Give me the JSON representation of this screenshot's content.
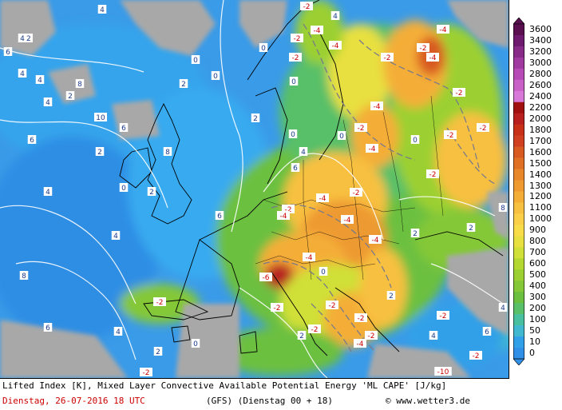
{
  "footer": {
    "line1": "Lifted Index [K], Mixed Layer Convective Available Potential Energy 'ML CAPE' [J/kg]",
    "date": "Dienstag, 26-07-2016  18 UTC",
    "model": "(GFS)  (Dienstag 00 + 18)",
    "copyright": "© www.wetter3.de"
  },
  "colorbar": {
    "levels": [
      "3600",
      "3400",
      "3200",
      "3000",
      "2800",
      "2600",
      "2400",
      "2200",
      "2000",
      "1800",
      "1700",
      "1600",
      "1500",
      "1400",
      "1300",
      "1200",
      "1100",
      "1000",
      "900",
      "800",
      "700",
      "600",
      "500",
      "400",
      "300",
      "200",
      "100",
      "50",
      "10",
      "0"
    ],
    "colors": [
      "#5a1050",
      "#6e1a6e",
      "#882a88",
      "#a03aa0",
      "#b84ab8",
      "#c860c8",
      "#d878d8",
      "#a01010",
      "#b82020",
      "#c83018",
      "#d04020",
      "#d85a20",
      "#e07024",
      "#e8862a",
      "#ee9a30",
      "#f4ae38",
      "#f8c040",
      "#fbd048",
      "#f8dc48",
      "#e8e040",
      "#d0e038",
      "#b4d830",
      "#9cd030",
      "#84c838",
      "#6cc040",
      "#58c068",
      "#48c0a0",
      "#40b8d0",
      "#30a0e8",
      "#3090e8"
    ]
  },
  "map": {
    "sea_color": "#3a9be8",
    "land_gray": "#a8a8a8",
    "li_labels": [
      {
        "v": "4",
        "c": "w"
      },
      {
        "v": "12",
        "c": "w"
      },
      {
        "v": "6",
        "c": "w"
      },
      {
        "v": "4",
        "c": "w"
      },
      {
        "v": "2",
        "c": "w"
      },
      {
        "v": "4",
        "c": "w"
      },
      {
        "v": "6",
        "c": "w"
      },
      {
        "v": "10",
        "c": "w"
      },
      {
        "v": "8",
        "c": "w"
      },
      {
        "v": "6",
        "c": "w"
      },
      {
        "v": "4",
        "c": "w"
      },
      {
        "v": "2",
        "c": "w"
      },
      {
        "v": "0",
        "c": "w"
      },
      {
        "v": "2",
        "c": "w"
      },
      {
        "v": "6",
        "c": "w"
      },
      {
        "v": "4",
        "c": "w"
      },
      {
        "v": "8",
        "c": "w"
      },
      {
        "v": "6",
        "c": "w"
      },
      {
        "v": "4",
        "c": "w"
      },
      {
        "v": "2",
        "c": "w"
      },
      {
        "v": "0",
        "c": "w"
      },
      {
        "v": "0",
        "c": "w"
      },
      {
        "v": "0",
        "c": "w"
      },
      {
        "v": "2",
        "c": "w"
      },
      {
        "v": "4",
        "c": "w"
      },
      {
        "v": "6",
        "c": "w"
      },
      {
        "v": "8",
        "c": "w"
      },
      {
        "v": "4",
        "c": "w"
      },
      {
        "v": "2",
        "c": "w"
      },
      {
        "v": "-2",
        "c": "r"
      },
      {
        "v": "-4",
        "c": "r"
      },
      {
        "v": "-2",
        "c": "r"
      },
      {
        "v": "-4",
        "c": "r"
      },
      {
        "v": "-2",
        "c": "r"
      },
      {
        "v": "-4",
        "c": "r"
      },
      {
        "v": "-2",
        "c": "r"
      },
      {
        "v": "-4",
        "c": "r"
      },
      {
        "v": "-2",
        "c": "r"
      },
      {
        "v": "-4",
        "c": "r"
      },
      {
        "v": "-4",
        "c": "r"
      },
      {
        "v": "-2",
        "c": "r"
      },
      {
        "v": "-4",
        "c": "r"
      },
      {
        "v": "-2",
        "c": "r"
      },
      {
        "v": "-4",
        "c": "r"
      },
      {
        "v": "-2",
        "c": "r"
      },
      {
        "v": "-6",
        "c": "r"
      },
      {
        "v": "-2",
        "c": "r"
      },
      {
        "v": "-4",
        "c": "r"
      },
      {
        "v": "-2",
        "c": "r"
      },
      {
        "v": "-2",
        "c": "r"
      },
      {
        "v": "-4",
        "c": "r"
      },
      {
        "v": "-2",
        "c": "r"
      },
      {
        "v": "-4",
        "c": "r"
      },
      {
        "v": "-2",
        "c": "r"
      },
      {
        "v": "-2",
        "c": "r"
      },
      {
        "v": "-2",
        "c": "r"
      },
      {
        "v": "-2",
        "c": "r"
      },
      {
        "v": "-10",
        "c": "r"
      },
      {
        "v": "-2",
        "c": "r"
      },
      {
        "v": "2",
        "c": "w"
      },
      {
        "v": "0",
        "c": "w"
      },
      {
        "v": "4",
        "c": "w"
      },
      {
        "v": "6",
        "c": "w"
      },
      {
        "v": "8",
        "c": "w"
      },
      {
        "v": "4",
        "c": "w"
      },
      {
        "v": "2",
        "c": "w"
      },
      {
        "v": "0",
        "c": "w"
      },
      {
        "v": "0",
        "c": "w"
      },
      {
        "v": "2",
        "c": "w"
      },
      {
        "v": "4",
        "c": "w"
      },
      {
        "v": "0",
        "c": "w"
      },
      {
        "v": "-2",
        "c": "r"
      },
      {
        "v": "-2",
        "c": "r"
      },
      {
        "v": "0",
        "c": "w"
      },
      {
        "v": "2",
        "c": "w"
      },
      {
        "v": "-2",
        "c": "r"
      },
      {
        "v": "-4",
        "c": "r"
      },
      {
        "v": "-2",
        "c": "r"
      },
      {
        "v": "0",
        "c": "w"
      },
      {
        "v": "4",
        "c": "w"
      }
    ]
  }
}
